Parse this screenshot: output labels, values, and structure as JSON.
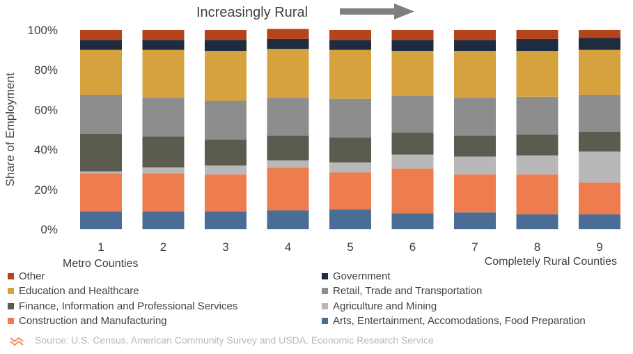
{
  "chart_data": {
    "type": "bar",
    "stacked": true,
    "percent": true,
    "categories": [
      "1",
      "2",
      "3",
      "4",
      "5",
      "6",
      "7",
      "8",
      "9"
    ],
    "category_sublabels": {
      "first": "Metro Counties",
      "last": "Completely Rural Counties"
    },
    "header": "Increasingly Rural",
    "ylabel": "Share of Employment",
    "ylim": [
      0,
      100
    ],
    "yticks": [
      "0%",
      "20%",
      "40%",
      "60%",
      "80%",
      "100%"
    ],
    "legend_position": "bottom",
    "series": [
      {
        "name": "Arts, Entertainment, Accomodations, Food Preparation",
        "color": "#4a6d96",
        "values": [
          9,
          9,
          9,
          9.5,
          10,
          8,
          8.5,
          7.5,
          7.5
        ]
      },
      {
        "name": "Construction and Manufacturing",
        "color": "#ed7d4f",
        "values": [
          19,
          19,
          18.5,
          21.5,
          18.5,
          22.5,
          19,
          20,
          16
        ]
      },
      {
        "name": "Agriculture and Mining",
        "color": "#b8b8b8",
        "values": [
          1,
          3,
          4.5,
          3.5,
          5,
          7,
          9,
          9.5,
          15.5
        ]
      },
      {
        "name": "Finance, Information and Professional Services",
        "color": "#5b5b4f",
        "values": [
          19,
          15.5,
          13,
          12.5,
          12.5,
          11,
          10.5,
          10.5,
          10
        ]
      },
      {
        "name": "Retail, Trade and Transportation",
        "color": "#8d8d8d",
        "values": [
          19.5,
          19.5,
          19.5,
          19,
          19.5,
          18.5,
          19,
          19,
          18.5
        ]
      },
      {
        "name": "Education and Healthcare",
        "color": "#d6a23d",
        "values": [
          22.5,
          24,
          25,
          24.5,
          24.5,
          22.5,
          23.5,
          23,
          22.5
        ]
      },
      {
        "name": "Government",
        "color": "#1f2b3e",
        "values": [
          5,
          5,
          5.5,
          5,
          5,
          5.5,
          5.5,
          6,
          6
        ]
      },
      {
        "name": "Other",
        "color": "#b5441c",
        "values": [
          5,
          5,
          5,
          5,
          5,
          5,
          5,
          4.5,
          4
        ]
      }
    ]
  },
  "source": "Source: U.S. Census, American Community Survey and USDA, Economic Research Service",
  "logo_icon": "orange-chevrons-logo"
}
